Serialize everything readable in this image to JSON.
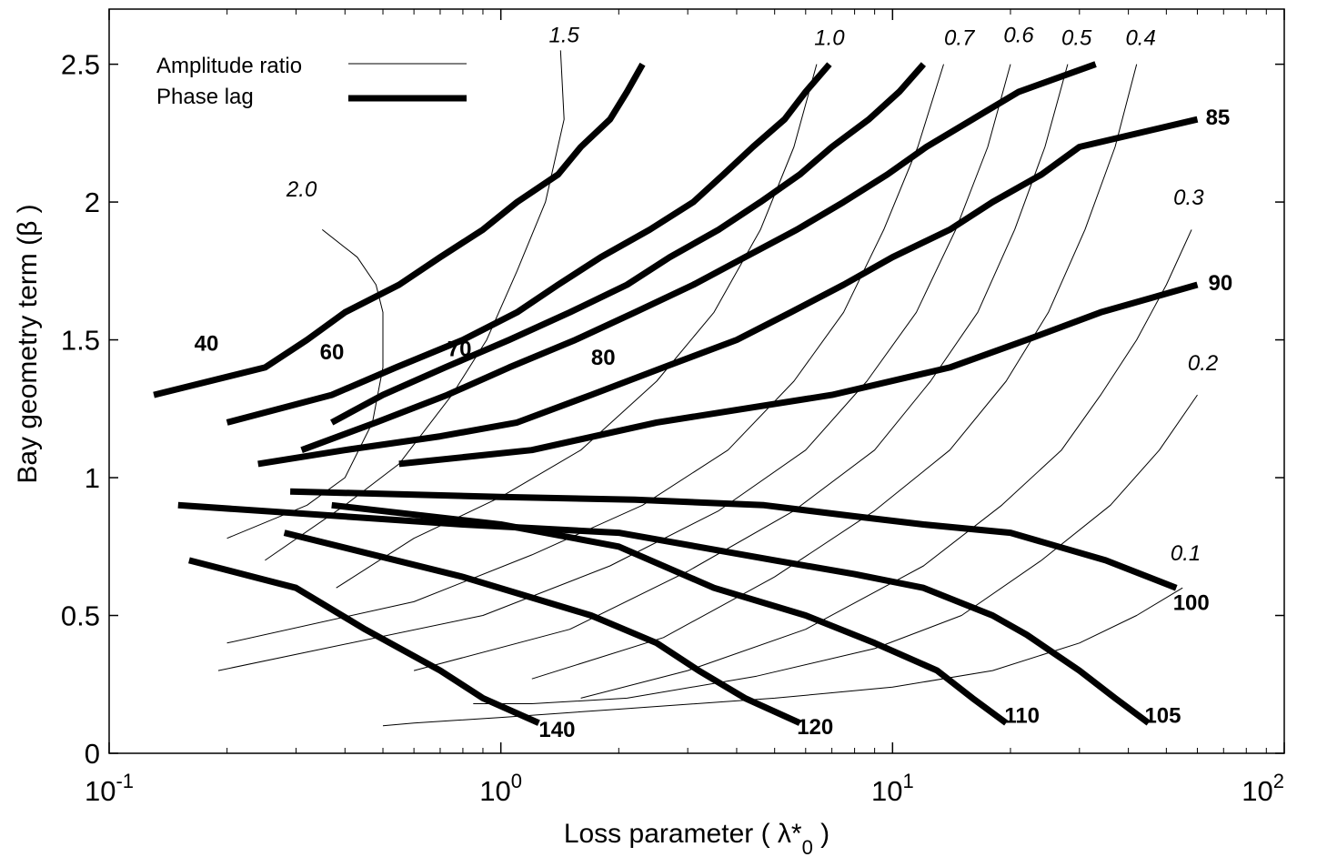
{
  "chart_data": {
    "type": "line",
    "xlabel": "Loss parameter ( λ*",
    "xlabel_sub": "0",
    "xlabel_close": " )",
    "ylabel": "Bay geometry term (β )",
    "x_scale": "log",
    "xlim": [
      0.1,
      100
    ],
    "ylim": [
      0,
      2.7
    ],
    "x_ticks": [
      {
        "value": 0.1,
        "base": "10",
        "exp": "-1"
      },
      {
        "value": 1,
        "base": "10",
        "exp": "0"
      },
      {
        "value": 10,
        "base": "10",
        "exp": "1"
      },
      {
        "value": 100,
        "base": "10",
        "exp": "2"
      }
    ],
    "y_ticks": [
      {
        "value": 0,
        "label": "0"
      },
      {
        "value": 0.5,
        "label": "0.5"
      },
      {
        "value": 1,
        "label": "1"
      },
      {
        "value": 1.5,
        "label": "1.5"
      },
      {
        "value": 2,
        "label": "2"
      },
      {
        "value": 2.5,
        "label": "2.5"
      }
    ],
    "legend": {
      "placement": "top-left",
      "entries": [
        {
          "label": "Amplitude ratio",
          "style": "thin"
        },
        {
          "label": "Phase lag",
          "style": "thick"
        }
      ]
    },
    "amplitude_ratio_series": [
      {
        "name": "2.0",
        "label_at": [
          0.31,
          2.02
        ],
        "points": [
          [
            0.35,
            1.9
          ],
          [
            0.43,
            1.8
          ],
          [
            0.48,
            1.7
          ],
          [
            0.5,
            1.6
          ],
          [
            0.5,
            1.4
          ],
          [
            0.47,
            1.2
          ],
          [
            0.4,
            1.0
          ],
          [
            0.32,
            0.9
          ],
          [
            0.2,
            0.78
          ]
        ]
      },
      {
        "name": "1.5",
        "label_at": [
          1.45,
          2.58
        ],
        "points": [
          [
            1.42,
            2.55
          ],
          [
            1.45,
            2.3
          ],
          [
            1.3,
            2.0
          ],
          [
            1.1,
            1.75
          ],
          [
            0.92,
            1.5
          ],
          [
            0.75,
            1.3
          ],
          [
            0.55,
            1.05
          ],
          [
            0.4,
            0.9
          ],
          [
            0.25,
            0.7
          ]
        ]
      },
      {
        "name": "1.0",
        "label_at": [
          6.9,
          2.57
        ],
        "points": [
          [
            6.4,
            2.5
          ],
          [
            5.6,
            2.2
          ],
          [
            4.6,
            1.9
          ],
          [
            3.5,
            1.6
          ],
          [
            2.5,
            1.35
          ],
          [
            1.6,
            1.1
          ],
          [
            1.0,
            0.93
          ],
          [
            0.6,
            0.78
          ],
          [
            0.38,
            0.6
          ]
        ]
      },
      {
        "name": "0.7",
        "label_at": [
          14.8,
          2.57
        ],
        "points": [
          [
            13.5,
            2.5
          ],
          [
            11.6,
            2.2
          ],
          [
            9.5,
            1.9
          ],
          [
            7.5,
            1.6
          ],
          [
            5.6,
            1.35
          ],
          [
            3.8,
            1.1
          ],
          [
            2.3,
            0.9
          ],
          [
            1.2,
            0.72
          ],
          [
            0.6,
            0.55
          ],
          [
            0.2,
            0.4
          ]
        ]
      },
      {
        "name": "0.6",
        "label_at": [
          21.0,
          2.58
        ],
        "points": [
          [
            20,
            2.5
          ],
          [
            17.5,
            2.2
          ],
          [
            14.5,
            1.9
          ],
          [
            11.5,
            1.6
          ],
          [
            8.6,
            1.35
          ],
          [
            6.0,
            1.1
          ],
          [
            3.6,
            0.88
          ],
          [
            1.9,
            0.68
          ],
          [
            0.9,
            0.5
          ],
          [
            0.19,
            0.3
          ]
        ]
      },
      {
        "name": "0.5",
        "label_at": [
          29.5,
          2.57
        ],
        "points": [
          [
            28,
            2.5
          ],
          [
            24.5,
            2.2
          ],
          [
            20.5,
            1.9
          ],
          [
            16.5,
            1.6
          ],
          [
            12.5,
            1.35
          ],
          [
            9.0,
            1.1
          ],
          [
            5.6,
            0.88
          ],
          [
            3.0,
            0.66
          ],
          [
            1.5,
            0.45
          ],
          [
            0.6,
            0.3
          ]
        ]
      },
      {
        "name": "0.4",
        "label_at": [
          43.0,
          2.57
        ],
        "points": [
          [
            42,
            2.5
          ],
          [
            37,
            2.2
          ],
          [
            31,
            1.9
          ],
          [
            25,
            1.6
          ],
          [
            19.5,
            1.35
          ],
          [
            14,
            1.1
          ],
          [
            9,
            0.88
          ],
          [
            5,
            0.64
          ],
          [
            2.6,
            0.42
          ],
          [
            1.2,
            0.27
          ]
        ]
      },
      {
        "name": "0.3",
        "label_at": [
          57.0,
          1.99
        ],
        "points": [
          [
            58,
            1.9
          ],
          [
            50,
            1.7
          ],
          [
            42,
            1.5
          ],
          [
            34,
            1.3
          ],
          [
            27,
            1.1
          ],
          [
            19,
            0.9
          ],
          [
            12,
            0.68
          ],
          [
            6,
            0.45
          ],
          [
            3,
            0.3
          ],
          [
            1.6,
            0.2
          ]
        ]
      },
      {
        "name": "0.2",
        "label_at": [
          62.0,
          1.39
        ],
        "points": [
          [
            60,
            1.3
          ],
          [
            48,
            1.1
          ],
          [
            36,
            0.9
          ],
          [
            24,
            0.7
          ],
          [
            15,
            0.5
          ],
          [
            9,
            0.38
          ],
          [
            4.5,
            0.28
          ],
          [
            2.1,
            0.2
          ],
          [
            1.2,
            0.18
          ],
          [
            0.85,
            0.18
          ]
        ]
      },
      {
        "name": "0.1",
        "label_at": [
          56.0,
          0.7
        ],
        "points": [
          [
            55,
            0.6
          ],
          [
            42,
            0.5
          ],
          [
            30,
            0.4
          ],
          [
            18,
            0.3
          ],
          [
            10,
            0.24
          ],
          [
            5,
            0.2
          ],
          [
            2,
            0.16
          ],
          [
            1,
            0.13
          ],
          [
            0.6,
            0.11
          ],
          [
            0.5,
            0.1
          ]
        ]
      }
    ],
    "phase_lag_series": [
      {
        "name": "40",
        "label_at": [
          0.165,
          1.46
        ],
        "points": [
          [
            0.13,
            1.3
          ],
          [
            0.25,
            1.4
          ],
          [
            0.32,
            1.5
          ],
          [
            0.4,
            1.6
          ],
          [
            0.55,
            1.7
          ],
          [
            0.7,
            1.8
          ],
          [
            0.9,
            1.9
          ],
          [
            1.1,
            2.0
          ],
          [
            1.4,
            2.1
          ],
          [
            1.6,
            2.2
          ],
          [
            1.9,
            2.3
          ],
          [
            2.1,
            2.4
          ],
          [
            2.3,
            2.5
          ]
        ]
      },
      {
        "name": "60",
        "label_at": [
          0.345,
          1.43
        ],
        "points": [
          [
            0.2,
            1.2
          ],
          [
            0.37,
            1.3
          ],
          [
            0.54,
            1.4
          ],
          [
            0.8,
            1.5
          ],
          [
            1.1,
            1.6
          ],
          [
            1.4,
            1.7
          ],
          [
            1.8,
            1.8
          ],
          [
            2.4,
            1.9
          ],
          [
            3.1,
            2.0
          ],
          [
            3.7,
            2.1
          ],
          [
            4.4,
            2.2
          ],
          [
            5.3,
            2.3
          ],
          [
            6.0,
            2.4
          ],
          [
            6.9,
            2.5
          ]
        ]
      },
      {
        "name": "70",
        "label_at": [
          0.73,
          1.44
        ],
        "points": [
          [
            0.37,
            1.2
          ],
          [
            0.5,
            1.3
          ],
          [
            0.72,
            1.4
          ],
          [
            1.05,
            1.5
          ],
          [
            1.5,
            1.6
          ],
          [
            2.1,
            1.7
          ],
          [
            2.7,
            1.8
          ],
          [
            3.6,
            1.9
          ],
          [
            4.6,
            2.0
          ],
          [
            5.8,
            2.1
          ],
          [
            7.0,
            2.2
          ],
          [
            8.7,
            2.3
          ],
          [
            10.4,
            2.4
          ],
          [
            12.0,
            2.5
          ]
        ]
      },
      {
        "name": "80",
        "label_at": [
          1.7,
          1.41
        ],
        "points": [
          [
            0.31,
            1.1
          ],
          [
            0.48,
            1.2
          ],
          [
            0.73,
            1.3
          ],
          [
            1.05,
            1.4
          ],
          [
            1.55,
            1.5
          ],
          [
            2.2,
            1.6
          ],
          [
            3.1,
            1.7
          ],
          [
            4.2,
            1.8
          ],
          [
            5.7,
            1.9
          ],
          [
            7.5,
            2.0
          ],
          [
            9.7,
            2.1
          ],
          [
            12.2,
            2.2
          ],
          [
            16,
            2.3
          ],
          [
            21,
            2.4
          ],
          [
            33,
            2.5
          ]
        ]
      },
      {
        "name": "85",
        "label_at": [
          63.0,
          2.28
        ],
        "points": [
          [
            0.24,
            1.05
          ],
          [
            0.4,
            1.1
          ],
          [
            0.7,
            1.15
          ],
          [
            1.1,
            1.2
          ],
          [
            1.7,
            1.3
          ],
          [
            2.6,
            1.4
          ],
          [
            4,
            1.5
          ],
          [
            5.5,
            1.6
          ],
          [
            7.5,
            1.7
          ],
          [
            10,
            1.8
          ],
          [
            14,
            1.9
          ],
          [
            18,
            2.0
          ],
          [
            24,
            2.1
          ],
          [
            30,
            2.2
          ],
          [
            60,
            2.3
          ]
        ]
      },
      {
        "name": "90",
        "label_at": [
          64.0,
          1.68
        ],
        "points": [
          [
            0.55,
            1.05
          ],
          [
            1.2,
            1.1
          ],
          [
            2.5,
            1.2
          ],
          [
            7,
            1.3
          ],
          [
            14,
            1.4
          ],
          [
            22,
            1.5
          ],
          [
            34,
            1.6
          ],
          [
            60,
            1.7
          ]
        ]
      },
      {
        "name": "100",
        "label_at": [
          52.0,
          0.52
        ],
        "points": [
          [
            0.29,
            0.95
          ],
          [
            1.0,
            0.93
          ],
          [
            2.2,
            0.92
          ],
          [
            4.7,
            0.9
          ],
          [
            8,
            0.86
          ],
          [
            12,
            0.83
          ],
          [
            20,
            0.8
          ],
          [
            25,
            0.76
          ],
          [
            35,
            0.7
          ],
          [
            53,
            0.6
          ]
        ]
      },
      {
        "name": "105",
        "label_at": [
          44.0,
          0.11
        ],
        "points": [
          [
            0.15,
            0.9
          ],
          [
            0.8,
            0.83
          ],
          [
            2,
            0.8
          ],
          [
            5,
            0.7
          ],
          [
            8,
            0.65
          ],
          [
            12,
            0.6
          ],
          [
            18,
            0.5
          ],
          [
            22,
            0.43
          ],
          [
            30,
            0.3
          ],
          [
            37,
            0.2
          ],
          [
            45,
            0.11
          ]
        ]
      },
      {
        "name": "110",
        "label_at": [
          19.3,
          0.11
        ],
        "points": [
          [
            0.37,
            0.9
          ],
          [
            1.0,
            0.83
          ],
          [
            2,
            0.75
          ],
          [
            3.5,
            0.6
          ],
          [
            6,
            0.5
          ],
          [
            9,
            0.4
          ],
          [
            13,
            0.3
          ],
          [
            16,
            0.2
          ],
          [
            19.5,
            0.11
          ]
        ]
      },
      {
        "name": "120",
        "label_at": [
          5.7,
          0.07
        ],
        "points": [
          [
            0.28,
            0.8
          ],
          [
            0.8,
            0.64
          ],
          [
            1.7,
            0.5
          ],
          [
            2.5,
            0.4
          ],
          [
            3.2,
            0.3
          ],
          [
            4.2,
            0.2
          ],
          [
            5.8,
            0.11
          ]
        ]
      },
      {
        "name": "140",
        "label_at": [
          1.25,
          0.06
        ],
        "points": [
          [
            0.16,
            0.7
          ],
          [
            0.3,
            0.6
          ],
          [
            0.45,
            0.45
          ],
          [
            0.7,
            0.3
          ],
          [
            0.9,
            0.2
          ],
          [
            1.25,
            0.11
          ]
        ]
      }
    ]
  }
}
